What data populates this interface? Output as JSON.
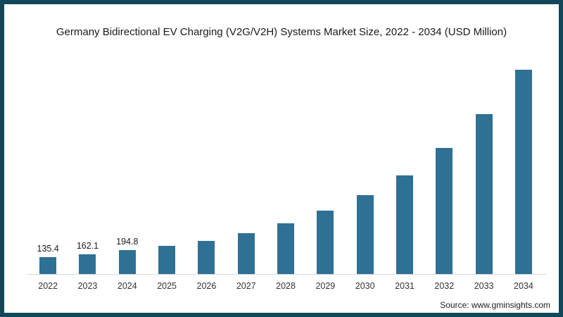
{
  "title": "Germany Bidirectional EV Charging (V2G/V2H) Systems Market Size, 2022 - 2034 (USD Million)",
  "source": "Source: www.gminsights.com",
  "colors": {
    "bar": "#2f7095",
    "frame_border": "#114759",
    "axis_line": "#d9d9d9",
    "title_text": "#1a1a1a",
    "background": "#ffffff"
  },
  "chart_data": {
    "type": "bar",
    "title": "Germany Bidirectional EV Charging (V2G/V2H) Systems Market Size, 2022 - 2034 (USD Million)",
    "unit": "USD Million",
    "categories": [
      "2022",
      "2023",
      "2024",
      "2025",
      "2026",
      "2027",
      "2028",
      "2029",
      "2030",
      "2031",
      "2032",
      "2033",
      "2034"
    ],
    "values": [
      135.4,
      162.1,
      194.8,
      227,
      270,
      333,
      410,
      513,
      642,
      802,
      1023,
      1297,
      1657
    ],
    "data_labels": [
      "135.4",
      "162.1",
      "194.8",
      "",
      "",
      "",
      "",
      "",
      "",
      "",
      "",
      "",
      ""
    ],
    "xlabel": "",
    "ylabel": "",
    "ylim": [
      0,
      1700
    ],
    "y_axis_visible": false,
    "gridlines": false,
    "legend": false,
    "source": "Source: www.gminsights.com"
  }
}
